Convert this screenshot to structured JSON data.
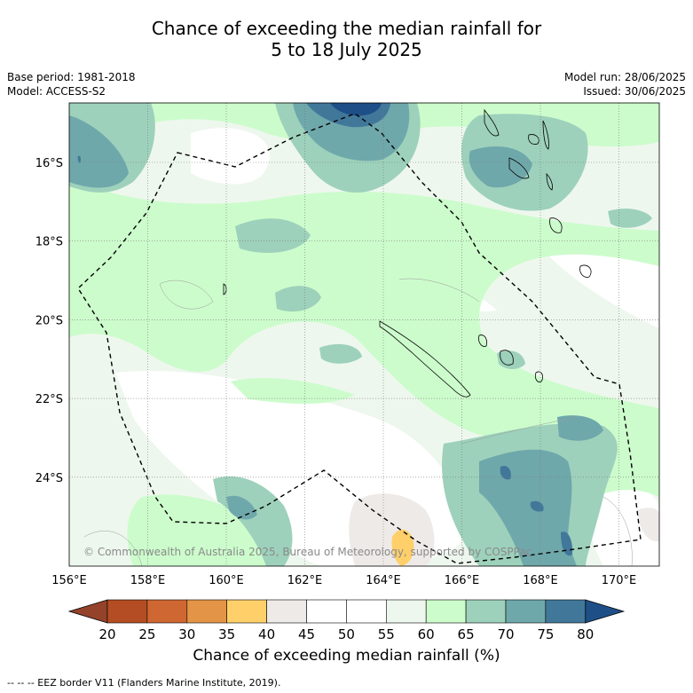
{
  "title_line1": "Chance of exceeding the median rainfall for",
  "title_line2": "5 to 18 July 2025",
  "meta": {
    "base_period": "Base period: 1981-2018",
    "model": "Model: ACCESS-S2",
    "model_run": "Model run: 28/06/2025",
    "issued": "Issued: 30/06/2025"
  },
  "map": {
    "lon_ticks": [
      "156°E",
      "158°E",
      "160°E",
      "162°E",
      "164°E",
      "166°E",
      "168°E",
      "170°E"
    ],
    "lat_ticks": [
      "16°S",
      "18°S",
      "20°S",
      "22°S",
      "24°S"
    ],
    "copyright": "© Commonwealth of Australia 2025, Bureau of Meteorology, supported by COSPPac",
    "colors": {
      "ocean_base": "#eef7ee",
      "white": "#ffffff",
      "g60": "#ccfccc",
      "g65": "#9dd1bb",
      "b70": "#6fa8ab",
      "b75": "#41789a",
      "b80": "#1e4f87",
      "grey40": "#eeeae8",
      "orange35": "#ffcf6a"
    }
  },
  "colorbar": {
    "ticks": [
      "20",
      "25",
      "30",
      "35",
      "40",
      "45",
      "50",
      "55",
      "60",
      "65",
      "70",
      "75",
      "80"
    ],
    "colors": [
      "#b44d23",
      "#cf6733",
      "#e49446",
      "#ffcf6a",
      "#eeeae8",
      "#ffffff",
      "#ffffff",
      "#eef7ee",
      "#ccfccc",
      "#9dd1bb",
      "#6fa8ab",
      "#41789a"
    ],
    "under_color": "#94422a",
    "over_color": "#1e4f87",
    "label": "Chance of exceeding median rainfall (%)"
  },
  "footnote": "--  --  -- EEZ border V11 (Flanders Marine Institute, 2019)."
}
